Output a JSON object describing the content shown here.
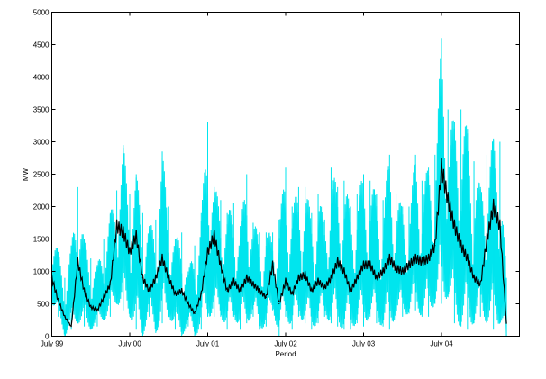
{
  "chart_data": {
    "type": "line",
    "title": "",
    "xlabel": "Period",
    "ylabel": "MW",
    "x_tick_labels": [
      "July 99",
      "July 00",
      "July 01",
      "July 02",
      "July 03",
      "July 04"
    ],
    "y_tick_labels": [
      "0",
      "500",
      "1000",
      "1500",
      "2000",
      "2500",
      "3000",
      "3500",
      "4000",
      "4500",
      "5000"
    ],
    "x_range": [
      "1999-07-01",
      "2005-07-01"
    ],
    "ylim": [
      0,
      5000
    ],
    "grid": false,
    "legend": "none",
    "series": [
      {
        "color": "#00e5ee",
        "role": "raw",
        "x": [
          "1999-07",
          "1999-08",
          "1999-09",
          "1999-10",
          "1999-11",
          "1999-12",
          "2000-01",
          "2000-02",
          "2000-03",
          "2000-04",
          "2000-05",
          "2000-06",
          "2000-07",
          "2000-08",
          "2000-09",
          "2000-10",
          "2000-11",
          "2000-12",
          "2001-01",
          "2001-02",
          "2001-03",
          "2001-04",
          "2001-05",
          "2001-06",
          "2001-07",
          "2001-08",
          "2001-09",
          "2001-10",
          "2001-11",
          "2001-12",
          "2002-01",
          "2002-02",
          "2002-03",
          "2002-04",
          "2002-05",
          "2002-06",
          "2002-07",
          "2002-08",
          "2002-09",
          "2002-10",
          "2002-11",
          "2002-12",
          "2003-01",
          "2003-02",
          "2003-03",
          "2003-04",
          "2003-05",
          "2003-06",
          "2003-07",
          "2003-08",
          "2003-09",
          "2003-10",
          "2003-11",
          "2003-12",
          "2004-01",
          "2004-02",
          "2004-03",
          "2004-04",
          "2004-05",
          "2004-06",
          "2004-07",
          "2004-08",
          "2004-09",
          "2004-10",
          "2004-11",
          "2004-12",
          "2005-01",
          "2005-02",
          "2005-03",
          "2005-04",
          "2005-05"
        ],
        "high": [
          1800,
          1300,
          900,
          1400,
          2300,
          1500,
          1200,
          1100,
          1500,
          1900,
          2250,
          2950,
          2200,
          2500,
          1900,
          1700,
          1800,
          2850,
          2000,
          1500,
          1600,
          1000,
          1400,
          1900,
          3300,
          2300,
          2100,
          1900,
          2050,
          1700,
          2500,
          1750,
          1600,
          1600,
          1600,
          1800,
          2600,
          2000,
          2300,
          2300,
          1900,
          2200,
          1800,
          2600,
          2300,
          2400,
          2000,
          2200,
          2500,
          2400,
          2200,
          2100,
          2800,
          2200,
          2000,
          2000,
          2800,
          2400,
          2600,
          2800,
          4600,
          3500,
          3300,
          3500,
          3200,
          2700,
          2300,
          2800,
          3050,
          3000,
          900
        ],
        "low": [
          500,
          300,
          0,
          100,
          200,
          150,
          100,
          150,
          250,
          300,
          500,
          400,
          300,
          100,
          0,
          300,
          50,
          200,
          300,
          100,
          0,
          150,
          0,
          100,
          300,
          300,
          300,
          100,
          300,
          100,
          200,
          300,
          100,
          150,
          400,
          0,
          300,
          100,
          300,
          200,
          100,
          200,
          300,
          200,
          150,
          100,
          100,
          200,
          150,
          300,
          200,
          150,
          100,
          300,
          300,
          350,
          400,
          300,
          300,
          500,
          500,
          600,
          200,
          150,
          100,
          200,
          300,
          200,
          100,
          200,
          0
        ]
      },
      {
        "color": "#000000",
        "role": "smoothed",
        "x": [
          "1999-07",
          "1999-08",
          "1999-09",
          "1999-10",
          "1999-11",
          "1999-12",
          "2000-01",
          "2000-02",
          "2000-03",
          "2000-04",
          "2000-05",
          "2000-06",
          "2000-07",
          "2000-08",
          "2000-09",
          "2000-10",
          "2000-11",
          "2000-12",
          "2001-01",
          "2001-02",
          "2001-03",
          "2001-04",
          "2001-05",
          "2001-06",
          "2001-07",
          "2001-08",
          "2001-09",
          "2001-10",
          "2001-11",
          "2001-12",
          "2002-01",
          "2002-02",
          "2002-03",
          "2002-04",
          "2002-05",
          "2002-06",
          "2002-07",
          "2002-08",
          "2002-09",
          "2002-10",
          "2002-11",
          "2002-12",
          "2003-01",
          "2003-02",
          "2003-03",
          "2003-04",
          "2003-05",
          "2003-06",
          "2003-07",
          "2003-08",
          "2003-09",
          "2003-10",
          "2003-11",
          "2003-12",
          "2004-01",
          "2004-02",
          "2004-03",
          "2004-04",
          "2004-05",
          "2004-06",
          "2004-07",
          "2004-08",
          "2004-09",
          "2004-10",
          "2004-11",
          "2004-12",
          "2005-01",
          "2005-02",
          "2005-03",
          "2005-04",
          "2005-05"
        ],
        "y": [
          900,
          550,
          300,
          150,
          1150,
          700,
          450,
          400,
          600,
          800,
          1700,
          1600,
          1300,
          1550,
          900,
          700,
          900,
          1200,
          900,
          650,
          700,
          500,
          350,
          650,
          1300,
          1550,
          1100,
          700,
          850,
          700,
          900,
          800,
          700,
          600,
          1100,
          500,
          850,
          650,
          900,
          950,
          700,
          850,
          750,
          900,
          1150,
          1000,
          700,
          900,
          1100,
          1100,
          900,
          1000,
          1200,
          1050,
          1000,
          1100,
          1200,
          1150,
          1200,
          1400,
          2600,
          2100,
          1700,
          1400,
          1200,
          900,
          800,
          1500,
          2000,
          1700,
          200
        ]
      }
    ]
  }
}
